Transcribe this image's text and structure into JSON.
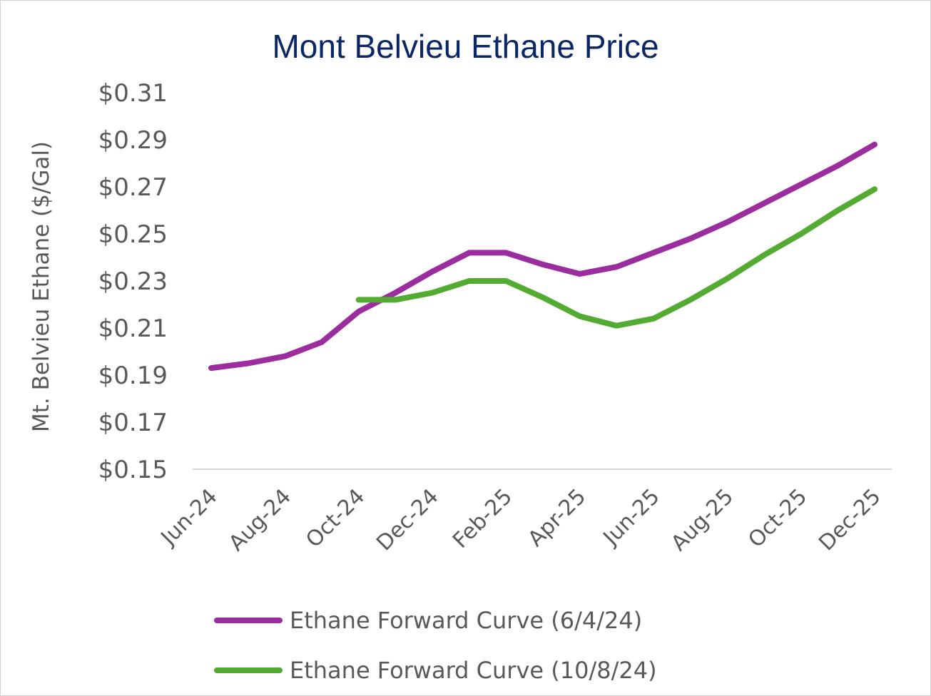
{
  "chart_data": {
    "type": "line",
    "title": "Mont Belvieu Ethane Price",
    "xlabel": "",
    "ylabel": "Mt. Belvieu Ethane ($/Gal)",
    "x": [
      "Jun-24",
      "Jul-24",
      "Aug-24",
      "Sep-24",
      "Oct-24",
      "Nov-24",
      "Dec-24",
      "Jan-25",
      "Feb-25",
      "Mar-25",
      "Apr-25",
      "May-25",
      "Jun-25",
      "Jul-25",
      "Aug-25",
      "Sep-25",
      "Oct-25",
      "Nov-25",
      "Dec-25"
    ],
    "x_tick_labels": [
      "Jun-24",
      "Aug-24",
      "Oct-24",
      "Dec-24",
      "Feb-25",
      "Apr-25",
      "Jun-25",
      "Aug-25",
      "Oct-25",
      "Dec-25"
    ],
    "ylim": [
      0.15,
      0.31
    ],
    "y_ticks": [
      0.15,
      0.17,
      0.19,
      0.21,
      0.23,
      0.25,
      0.27,
      0.29,
      0.31
    ],
    "y_tick_labels": [
      "$0.15",
      "$0.17",
      "$0.19",
      "$0.21",
      "$0.23",
      "$0.25",
      "$0.27",
      "$0.29",
      "$0.31"
    ],
    "grid": false,
    "legend_position": "bottom",
    "series": [
      {
        "name": "Ethane Forward Curve (6/4/24)",
        "color": "#9b2d9f",
        "values": [
          0.193,
          0.195,
          0.198,
          0.204,
          0.217,
          0.225,
          0.234,
          0.242,
          0.242,
          0.237,
          0.233,
          0.236,
          0.242,
          0.248,
          0.255,
          0.263,
          0.271,
          0.279,
          0.288
        ]
      },
      {
        "name": "Ethane Forward Curve (10/8/24)",
        "color": "#54ab32",
        "values": [
          null,
          null,
          null,
          null,
          0.222,
          0.222,
          0.225,
          0.23,
          0.23,
          0.223,
          0.215,
          0.211,
          0.214,
          0.222,
          0.231,
          0.241,
          0.25,
          0.26,
          0.269
        ]
      }
    ]
  }
}
